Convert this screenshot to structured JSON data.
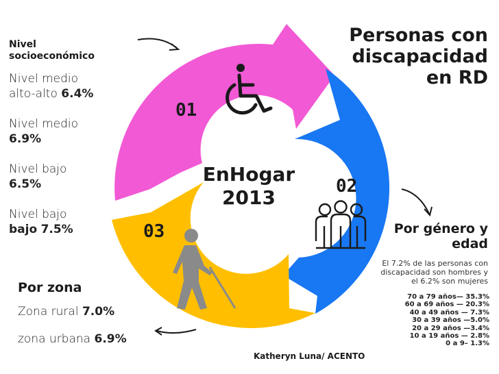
{
  "title": [
    "Personas con",
    "discapacidad",
    "en RD"
  ],
  "center": {
    "line1": "EnHogar",
    "line2": "2013"
  },
  "segments": [
    {
      "number": "01",
      "color": "#f259d5",
      "icon": "wheelchair-icon"
    },
    {
      "number": "02",
      "color": "#1877f2",
      "icon": "group-of-people-icon"
    },
    {
      "number": "03",
      "color": "#ffbf00",
      "icon": "blind-person-cane-icon"
    }
  ],
  "socio": {
    "heading": [
      "Nivel",
      "socioeconómico"
    ],
    "items": [
      {
        "label": [
          "Nivel medio",
          "alto-alto"
        ],
        "value": "6.4%"
      },
      {
        "label": [
          "Nivel medio"
        ],
        "value": "6.9%"
      },
      {
        "label": [
          "Nivel bajo"
        ],
        "value": "6.5%"
      },
      {
        "label": [
          "Nivel bajo",
          "bajo"
        ],
        "value": "7.5%"
      }
    ]
  },
  "zona": {
    "heading": "Por zona",
    "items": [
      {
        "label": "Zona rural",
        "value": "7.0%"
      },
      {
        "label": "zona urbana",
        "value": "6.9%"
      }
    ]
  },
  "genero": {
    "heading": [
      "Por género y",
      "edad"
    ],
    "note": [
      "El  7.2% de las personas con",
      "discapacidad son hombres y",
      "el 6.2% son mujeres"
    ],
    "ages": [
      "70 a 79 años— 35.3%",
      "60 a 69 años — 20.3%",
      "40 a 49 años — 7.3%",
      "30 a 39 años —5.0%",
      "20 a 29 años —3.4%",
      "10 a 19 años — 2.8%",
      "0 a 9– 1.3%"
    ]
  },
  "credit": "Katheryn Luna/ ACENTO",
  "colors": {
    "pink": "#f259d5",
    "blue": "#1877f2",
    "yellow": "#ffbf00",
    "icon": "#1a1a1a",
    "gray_icon": "#8a8a8a"
  }
}
